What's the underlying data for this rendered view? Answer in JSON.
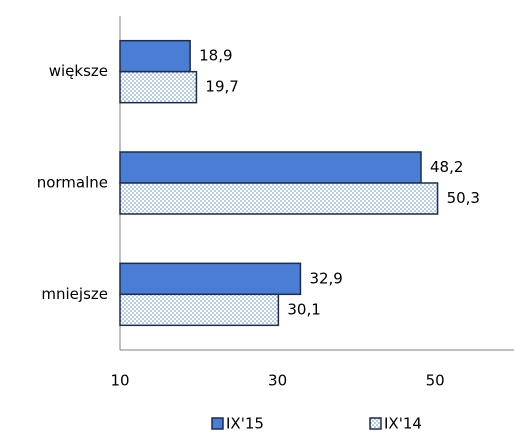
{
  "chart_data": {
    "type": "hbar",
    "categories": [
      "większe",
      "normalne",
      "mniejsze"
    ],
    "series": [
      {
        "name": "IX'15",
        "color": "#4a7ed4",
        "values": [
          18.9,
          48.2,
          32.9
        ],
        "value_labels": [
          "18,9",
          "48,2",
          "32,9"
        ]
      },
      {
        "name": "IX'14",
        "color": "#5b8fd9",
        "pattern": "dotted",
        "values": [
          19.7,
          50.3,
          30.1
        ],
        "value_labels": [
          "19,7",
          "50,3",
          "30,1"
        ]
      }
    ],
    "xlim": [
      10,
      60
    ],
    "xticks": [
      10,
      30,
      50
    ],
    "legend": "bottom"
  }
}
